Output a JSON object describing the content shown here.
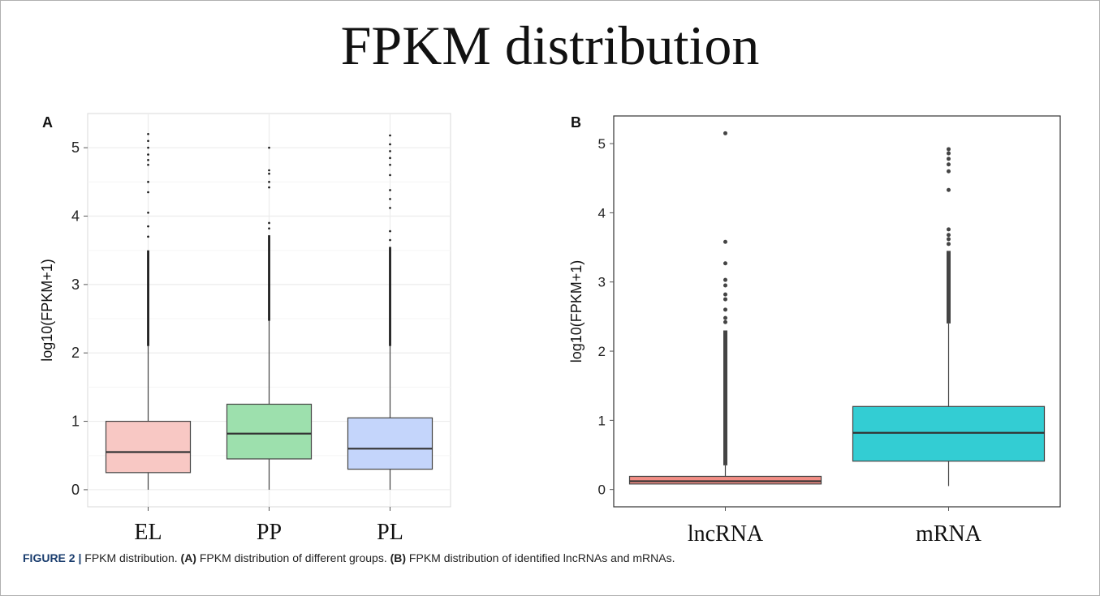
{
  "title": "FPKM distribution",
  "caption": {
    "figure_label": "FIGURE 2 |",
    "text1": " FPKM distribution. ",
    "label_a": "(A)",
    "text2": " FPKM distribution of different groups. ",
    "label_b": "(B)",
    "text3": " FPKM distribution of identified lncRNAs and mRNAs."
  },
  "chart_data": [
    {
      "panel": "A",
      "type": "boxplot",
      "ylabel": "log10(FPKM+1)",
      "ylim": [
        -0.25,
        5.5
      ],
      "yticks": [
        0,
        1,
        2,
        3,
        4,
        5
      ],
      "grid": true,
      "categories": [
        "EL",
        "PP",
        "PL"
      ],
      "colors": [
        "#f8c8c4",
        "#9de0ad",
        "#c4d5fb"
      ],
      "boxes": [
        {
          "q1": 0.25,
          "median": 0.55,
          "q3": 1.0,
          "whisker_low": 0.0,
          "whisker_high": 2.1,
          "outliers_dense_to": 3.5,
          "outliers": [
            3.7,
            3.85,
            4.05,
            4.35,
            4.5,
            4.75,
            4.82,
            4.9,
            5.0,
            5.1,
            5.2
          ]
        },
        {
          "q1": 0.45,
          "median": 0.82,
          "q3": 1.25,
          "whisker_low": 0.0,
          "whisker_high": 2.47,
          "outliers_dense_to": 3.72,
          "outliers": [
            3.82,
            3.9,
            4.42,
            4.5,
            4.62,
            4.67,
            5.0
          ]
        },
        {
          "q1": 0.3,
          "median": 0.6,
          "q3": 1.05,
          "whisker_low": 0.0,
          "whisker_high": 2.1,
          "outliers_dense_to": 3.55,
          "outliers": [
            3.65,
            3.78,
            4.12,
            4.25,
            4.38,
            4.6,
            4.75,
            4.85,
            4.95,
            5.05,
            5.18
          ]
        }
      ]
    },
    {
      "panel": "B",
      "type": "boxplot",
      "ylabel": "log10(FPKM+1)",
      "ylim": [
        -0.25,
        5.4
      ],
      "yticks": [
        0,
        1,
        2,
        3,
        4,
        5
      ],
      "grid": false,
      "categories": [
        "lncRNA",
        "mRNA"
      ],
      "colors": [
        "#f28e85",
        "#33cdd3"
      ],
      "boxes": [
        {
          "q1": 0.08,
          "median": 0.12,
          "q3": 0.19,
          "whisker_low": 0.08,
          "whisker_high": 0.35,
          "outliers_dense_to": 2.3,
          "outliers": [
            2.42,
            2.48,
            2.6,
            2.75,
            2.82,
            2.95,
            3.03,
            3.27,
            3.58,
            5.15
          ]
        },
        {
          "q1": 0.41,
          "median": 0.82,
          "q3": 1.2,
          "whisker_low": 0.05,
          "whisker_high": 2.4,
          "outliers_dense_to": 3.45,
          "outliers": [
            3.55,
            3.62,
            3.68,
            3.76,
            4.33,
            4.6,
            4.7,
            4.78,
            4.86,
            4.92
          ]
        }
      ]
    }
  ]
}
